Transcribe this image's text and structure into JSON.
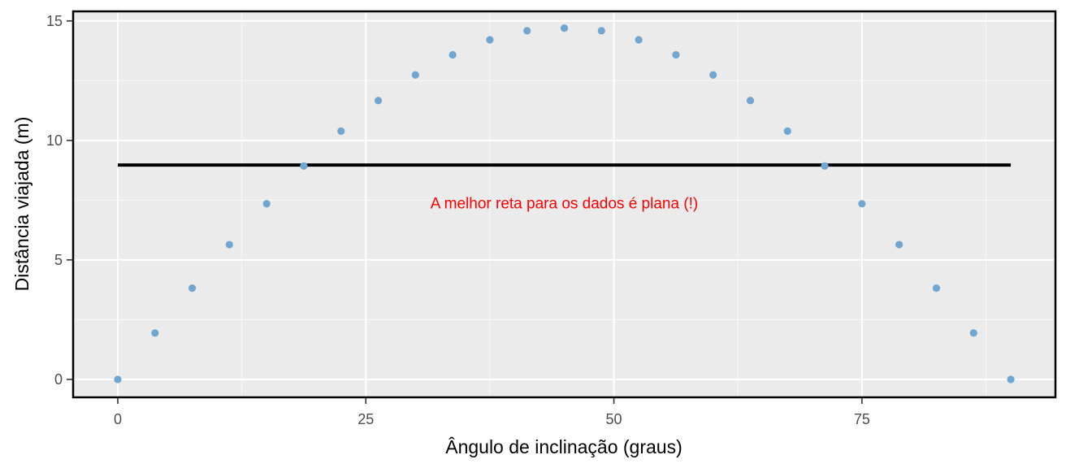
{
  "chart_data": {
    "type": "scatter",
    "xlabel": "Ângulo de inclinação (graus)",
    "ylabel": "Distância viajada (m)",
    "xlim": [
      -4.5,
      94.5
    ],
    "ylim": [
      -0.75,
      15.4
    ],
    "x_ticks": [
      0,
      25,
      50,
      75
    ],
    "x_tick_labels": [
      "0",
      "25",
      "50",
      "75"
    ],
    "y_ticks": [
      0,
      5,
      10,
      15
    ],
    "y_tick_labels": [
      "0",
      "5",
      "10",
      "15"
    ],
    "grid": true,
    "legend": "none",
    "points": {
      "x": [
        0,
        3.75,
        7.5,
        11.25,
        15,
        18.75,
        22.5,
        26.25,
        30,
        33.75,
        37.5,
        41.25,
        45,
        48.75,
        52.5,
        56.25,
        60,
        63.75,
        67.5,
        71.25,
        75,
        78.75,
        82.5,
        86.25,
        90
      ],
      "y": [
        0,
        1.94,
        3.82,
        5.64,
        7.35,
        8.93,
        10.39,
        11.67,
        12.74,
        13.58,
        14.21,
        14.59,
        14.7,
        14.59,
        14.21,
        13.58,
        12.74,
        11.67,
        10.39,
        8.93,
        7.35,
        5.64,
        3.82,
        1.94,
        0
      ],
      "color": "#70a6cf"
    },
    "fit_line": {
      "x": [
        0,
        90
      ],
      "y": [
        8.97,
        8.97
      ],
      "color": "#000000"
    },
    "annotation": {
      "text": "A melhor reta para os dados é plana (!)",
      "x": 45,
      "y": 7.4,
      "color": "#ff0000"
    }
  }
}
